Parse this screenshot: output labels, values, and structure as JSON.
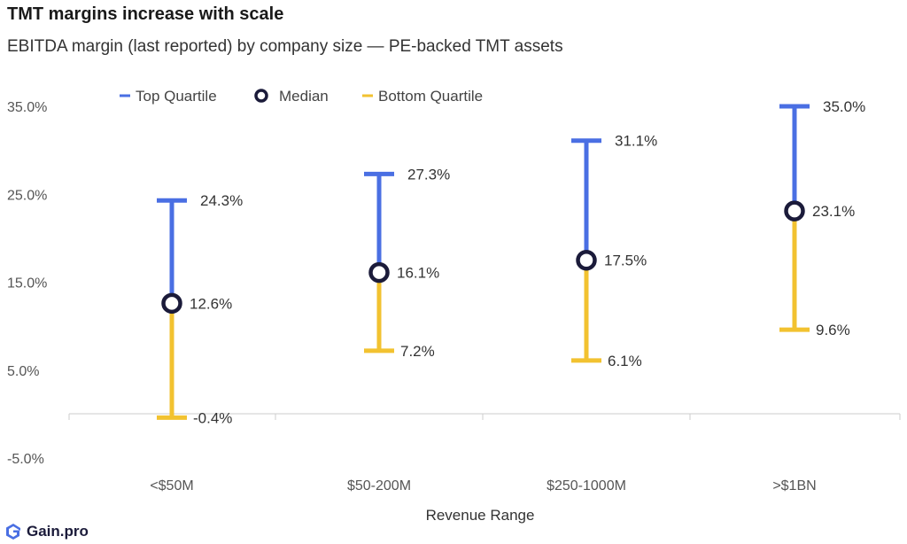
{
  "title": "TMT margins increase with scale",
  "subtitle": "EBITDA margin (last reported) by company size — PE-backed TMT assets",
  "brand": "Gain.pro",
  "colors": {
    "top": "#4a6fe3",
    "median": "#1b1b3a",
    "bottom": "#f2c230",
    "grid": "#cccccc",
    "text": "#333333"
  },
  "chart_data": {
    "type": "range",
    "xlabel": "Revenue Range",
    "ylabel": "",
    "ylim": [
      -5,
      35
    ],
    "yticks": [
      "35.0%",
      "25.0%",
      "15.0%",
      "5.0%",
      "-5.0%"
    ],
    "ytick_values": [
      35,
      25,
      15,
      5,
      -5
    ],
    "legend": {
      "placement": "top",
      "items": [
        "Top Quartile",
        "Median",
        "Bottom Quartile"
      ]
    },
    "categories": [
      "<$50M",
      "$50-200M",
      "$250-1000M",
      ">$1BN"
    ],
    "series": [
      {
        "name": "Top Quartile",
        "values": [
          24.3,
          27.3,
          31.1,
          35.0
        ],
        "labels": [
          "24.3%",
          "27.3%",
          "31.1%",
          "35.0%"
        ]
      },
      {
        "name": "Median",
        "values": [
          12.6,
          16.1,
          17.5,
          23.1
        ],
        "labels": [
          "12.6%",
          "16.1%",
          "17.5%",
          "23.1%"
        ]
      },
      {
        "name": "Bottom Quartile",
        "values": [
          -0.4,
          7.2,
          6.1,
          9.6
        ],
        "labels": [
          "-0.4%",
          "7.2%",
          "6.1%",
          "9.6%"
        ]
      }
    ]
  }
}
